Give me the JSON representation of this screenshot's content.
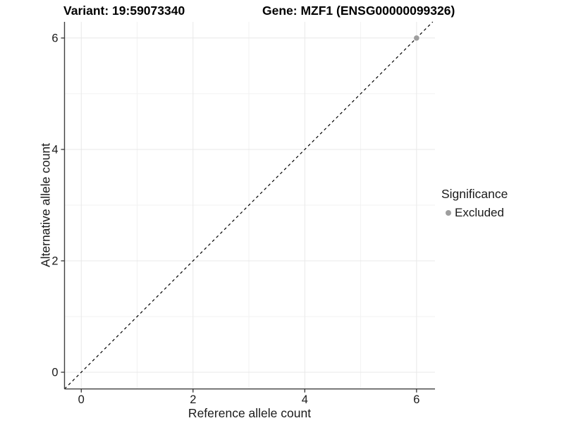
{
  "colors": {
    "background": "#ffffff",
    "axis_line": "#404040",
    "tick_mark": "#333333",
    "tick_text": "#1a1a1a",
    "grid_major": "#e8e8e8",
    "grid_minor": "#f2f2f2",
    "excluded_point": "#9e9e9e",
    "reference_line": "#000000"
  },
  "chart_data": {
    "type": "scatter",
    "titles": {
      "left": "Variant: 19:59073340",
      "right": "Gene: MZF1 (ENSG00000099326)"
    },
    "xlabel": "Reference allele count",
    "ylabel": "Alternative allele count",
    "xlim": [
      -0.3,
      6.33
    ],
    "ylim": [
      -0.3,
      6.29
    ],
    "x_ticks": [
      0,
      2,
      4,
      6
    ],
    "y_ticks": [
      0,
      2,
      4,
      6
    ],
    "x_minor_ticks": [
      1,
      3,
      5
    ],
    "y_minor_ticks": [
      1,
      3,
      5
    ],
    "grid": "major and minor gridlines, light grey on white",
    "reference_line": {
      "slope": 1,
      "intercept": 0,
      "style": "dashed",
      "color": "#000000"
    },
    "series": [
      {
        "name": "Excluded",
        "color": "#9e9e9e",
        "points": [
          {
            "x": 6,
            "y": 6
          }
        ]
      }
    ],
    "legend": {
      "title": "Significance",
      "position": "right",
      "entries": [
        {
          "label": "Excluded",
          "color": "#9e9e9e",
          "marker": "circle"
        }
      ]
    }
  }
}
